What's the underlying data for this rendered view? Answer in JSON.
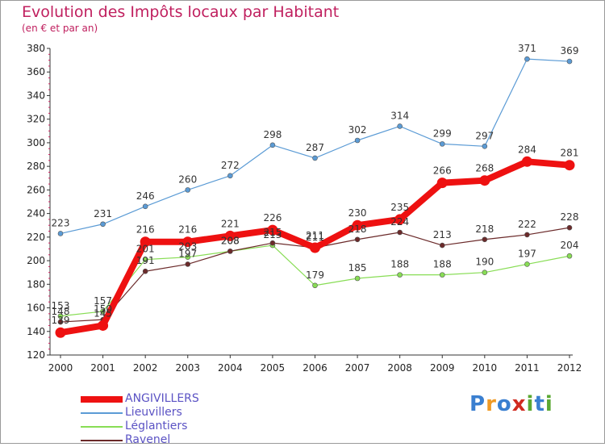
{
  "title": "Evolution des Impôts locaux par Habitant",
  "subtitle": "(en € et par an)",
  "logo": {
    "letters": [
      "P",
      "r",
      "o",
      "x",
      "i",
      "t",
      "i"
    ],
    "colors": [
      "#3a7fd0",
      "#f09a24",
      "#3a7fd0",
      "#d02a20",
      "#5aa832",
      "#3a7fd0",
      "#5aa832"
    ]
  },
  "chart_data": {
    "type": "line",
    "title": "Evolution des Impôts locaux par Habitant",
    "subtitle": "(en € et par an)",
    "xlabel": "",
    "ylabel": "",
    "x": [
      "2000",
      "2001",
      "2002",
      "2003",
      "2004",
      "2005",
      "2006",
      "2007",
      "2008",
      "2009",
      "2010",
      "2011",
      "2012"
    ],
    "ylim": [
      120,
      380
    ],
    "yticks": [
      "120",
      "140",
      "160",
      "180",
      "200",
      "220",
      "240",
      "260",
      "280",
      "300",
      "320",
      "340",
      "360",
      "380"
    ],
    "grid": false,
    "legend_position": "bottom-left",
    "series": [
      {
        "name": "ANGIVILLERS",
        "color": "#ee1111",
        "width": 8,
        "marker_r": 6.5,
        "values": [
          139,
          145,
          216,
          216,
          221,
          226,
          211,
          230,
          235,
          266,
          268,
          284,
          281
        ],
        "labels": [
          "139",
          "145",
          "216",
          "216",
          "221",
          "226",
          "211",
          "230",
          "235",
          "266",
          "268",
          "284",
          "281"
        ]
      },
      {
        "name": "Lieuvillers",
        "color": "#5b9bd5",
        "width": 1.2,
        "marker_r": 3,
        "values": [
          223,
          231,
          246,
          260,
          272,
          298,
          287,
          302,
          314,
          299,
          297,
          371,
          369
        ],
        "labels": [
          "223",
          "231",
          "246",
          "260",
          "272",
          "298",
          "287",
          "302",
          "314",
          "299",
          "297",
          "371",
          "369"
        ]
      },
      {
        "name": "Léglantiers",
        "color": "#88dd55",
        "width": 1.2,
        "marker_r": 3,
        "values": [
          153,
          157,
          201,
          203,
          208,
          213,
          179,
          185,
          188,
          188,
          190,
          197,
          204
        ],
        "labels": [
          "153",
          "157",
          "201",
          "203",
          "208",
          "213",
          "179",
          "185",
          "188",
          "188",
          "190",
          "197",
          "204"
        ]
      },
      {
        "name": "Ravenel",
        "color": "#6b2a2a",
        "width": 1.2,
        "marker_r": 3,
        "values": [
          148,
          150,
          191,
          197,
          208,
          215,
          211,
          218,
          224,
          213,
          218,
          222,
          228
        ],
        "labels": [
          "148",
          "150",
          "191",
          "197",
          "208",
          "215",
          "211",
          "218",
          "224",
          "213",
          "218",
          "222",
          "228"
        ]
      }
    ]
  }
}
